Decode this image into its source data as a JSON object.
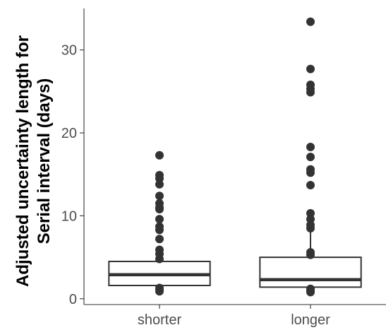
{
  "chart_data": {
    "type": "box",
    "title": "",
    "xlabel": "",
    "ylabel_lines": [
      "Adjusted uncertainty length for",
      "Serial interval (days)"
    ],
    "ylim": [
      -0.7,
      35
    ],
    "yticks": [
      0,
      10,
      20,
      30
    ],
    "categories": [
      "shorter",
      "longer"
    ],
    "boxes": [
      {
        "name": "shorter",
        "whisker_low": 0.8,
        "q1": 1.6,
        "median": 2.9,
        "q3": 4.5,
        "whisker_high": 4.5,
        "outliers": [
          17.3,
          14.9,
          14.5,
          13.8,
          12.4,
          11.5,
          11.0,
          10.8,
          9.6,
          8.7,
          8.3,
          7.2,
          5.9,
          5.4,
          4.8,
          1.3,
          1.1,
          0.9
        ]
      },
      {
        "name": "longer",
        "whisker_low": 0.8,
        "q1": 1.4,
        "median": 2.3,
        "q3": 5.0,
        "whisker_high": 10.1,
        "outliers": [
          33.4,
          27.7,
          25.8,
          25.3,
          24.9,
          18.3,
          17.1,
          15.6,
          15.2,
          13.7,
          10.3,
          9.6,
          8.9,
          8.5,
          5.6,
          5.3,
          1.2,
          1.0,
          0.8
        ]
      }
    ]
  }
}
